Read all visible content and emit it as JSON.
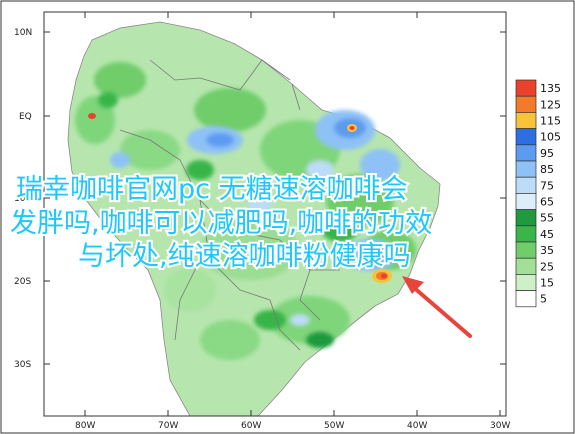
{
  "map": {
    "lat_labels": [
      "10N",
      "EQ",
      "10S",
      "20S",
      "30S"
    ],
    "lon_labels": [
      "80W",
      "70W",
      "60W",
      "50W",
      "40W",
      "30W"
    ]
  },
  "legend": {
    "bins": [
      {
        "label": "135",
        "color": "#e8432a"
      },
      {
        "label": "125",
        "color": "#f27a2b"
      },
      {
        "label": "115",
        "color": "#f8c33a"
      },
      {
        "label": "105",
        "color": "#2d6fe0"
      },
      {
        "label": "95",
        "color": "#5b9bf0"
      },
      {
        "label": "85",
        "color": "#8ec1f6"
      },
      {
        "label": "75",
        "color": "#bddcf8"
      },
      {
        "label": "65",
        "color": "#ddeefb"
      },
      {
        "label": "55",
        "color": "#1f9a3c"
      },
      {
        "label": "45",
        "color": "#39b54a"
      },
      {
        "label": "35",
        "color": "#6fcd6b"
      },
      {
        "label": "25",
        "color": "#a2e09a"
      },
      {
        "label": "15",
        "color": "#cdf0c7"
      },
      {
        "label": "5",
        "color": "#ffffff"
      }
    ]
  },
  "overlay": {
    "line1": "瑞幸咖啡官网pc 无糖速溶咖啡会",
    "line2": "发胖吗,咖啡可以减肥吗,咖啡的功效",
    "line3": "与坏处,纯速溶咖啡粉健康吗"
  },
  "colors": {
    "arrow": "#e8443a",
    "ocean": "#ffffff",
    "border": "#777777"
  }
}
